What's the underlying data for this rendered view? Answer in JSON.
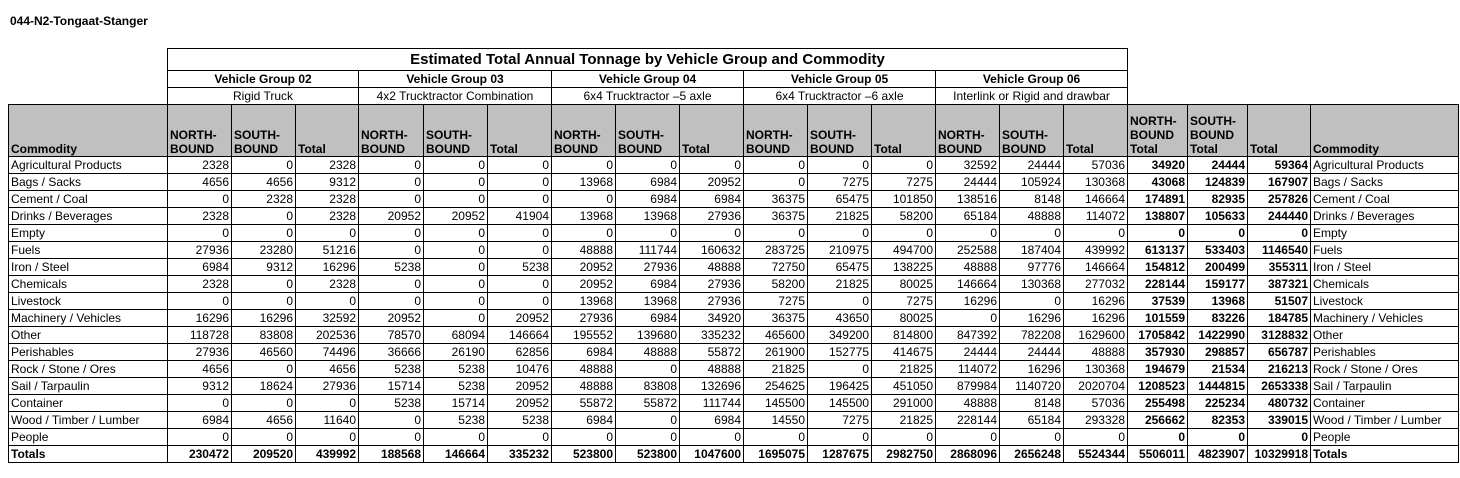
{
  "header": {
    "title": "044-N2-Tongaat-Stanger"
  },
  "table": {
    "title": "Estimated Total Annual Tonnage by Vehicle Group and Commodity",
    "groups": [
      {
        "name": "Vehicle Group 02",
        "subtitle": "Rigid Truck"
      },
      {
        "name": "Vehicle Group 03",
        "subtitle": "4x2 Trucktractor Combination"
      },
      {
        "name": "Vehicle Group 04",
        "subtitle": "6x4 Trucktractor –5 axle"
      },
      {
        "name": "Vehicle Group 05",
        "subtitle": "6x4 Trucktractor –6 axle"
      },
      {
        "name": "Vehicle Group 06",
        "subtitle": "Interlink or Rigid and drawbar"
      }
    ],
    "columns": [
      "Commodity",
      "NORTH-BOUND",
      "SOUTH-BOUND",
      "Total",
      "NORTH-BOUND",
      "SOUTH-BOUND",
      "Total",
      "NORTH-BOUND",
      "SOUTH-BOUND",
      "Total",
      "NORTH-BOUND",
      "SOUTH-BOUND",
      "Total",
      "NORTH-BOUND",
      "SOUTH-BOUND",
      "Total",
      "NORTH-BOUND Total",
      "SOUTH-BOUND Total",
      "Total",
      "Commodity"
    ],
    "rows": [
      {
        "commodity": "Agricultural Products",
        "values": [
          2328,
          0,
          2328,
          0,
          0,
          0,
          0,
          0,
          0,
          0,
          0,
          0,
          32592,
          24444,
          57036,
          34920,
          24444,
          59364
        ]
      },
      {
        "commodity": "Bags / Sacks",
        "values": [
          4656,
          4656,
          9312,
          0,
          0,
          0,
          13968,
          6984,
          20952,
          0,
          7275,
          7275,
          24444,
          105924,
          130368,
          43068,
          124839,
          167907
        ]
      },
      {
        "commodity": "Cement / Coal",
        "values": [
          0,
          2328,
          2328,
          0,
          0,
          0,
          0,
          6984,
          6984,
          36375,
          65475,
          101850,
          138516,
          8148,
          146664,
          174891,
          82935,
          257826
        ]
      },
      {
        "commodity": "Drinks / Beverages",
        "values": [
          2328,
          0,
          2328,
          20952,
          20952,
          41904,
          13968,
          13968,
          27936,
          36375,
          21825,
          58200,
          65184,
          48888,
          114072,
          138807,
          105633,
          244440
        ]
      },
      {
        "commodity": "Empty",
        "values": [
          0,
          0,
          0,
          0,
          0,
          0,
          0,
          0,
          0,
          0,
          0,
          0,
          0,
          0,
          0,
          0,
          0,
          0
        ]
      },
      {
        "commodity": "Fuels",
        "values": [
          27936,
          23280,
          51216,
          0,
          0,
          0,
          48888,
          111744,
          160632,
          283725,
          210975,
          494700,
          252588,
          187404,
          439992,
          613137,
          533403,
          1146540
        ]
      },
      {
        "commodity": "Iron / Steel",
        "values": [
          6984,
          9312,
          16296,
          5238,
          0,
          5238,
          20952,
          27936,
          48888,
          72750,
          65475,
          138225,
          48888,
          97776,
          146664,
          154812,
          200499,
          355311
        ]
      },
      {
        "commodity": "Chemicals",
        "values": [
          2328,
          0,
          2328,
          0,
          0,
          0,
          20952,
          6984,
          27936,
          58200,
          21825,
          80025,
          146664,
          130368,
          277032,
          228144,
          159177,
          387321
        ]
      },
      {
        "commodity": "Livestock",
        "values": [
          0,
          0,
          0,
          0,
          0,
          0,
          13968,
          13968,
          27936,
          7275,
          0,
          7275,
          16296,
          0,
          16296,
          37539,
          13968,
          51507
        ]
      },
      {
        "commodity": "Machinery / Vehicles",
        "values": [
          16296,
          16296,
          32592,
          20952,
          0,
          20952,
          27936,
          6984,
          34920,
          36375,
          43650,
          80025,
          0,
          16296,
          16296,
          101559,
          83226,
          184785
        ]
      },
      {
        "commodity": "Other",
        "values": [
          118728,
          83808,
          202536,
          78570,
          68094,
          146664,
          195552,
          139680,
          335232,
          465600,
          349200,
          814800,
          847392,
          782208,
          1629600,
          1705842,
          1422990,
          3128832
        ]
      },
      {
        "commodity": "Perishables",
        "values": [
          27936,
          46560,
          74496,
          36666,
          26190,
          62856,
          6984,
          48888,
          55872,
          261900,
          152775,
          414675,
          24444,
          24444,
          48888,
          357930,
          298857,
          656787
        ]
      },
      {
        "commodity": "Rock / Stone / Ores",
        "values": [
          4656,
          0,
          4656,
          5238,
          5238,
          10476,
          48888,
          0,
          48888,
          21825,
          0,
          21825,
          114072,
          16296,
          130368,
          194679,
          21534,
          216213
        ]
      },
      {
        "commodity": "Sail / Tarpaulin",
        "values": [
          9312,
          18624,
          27936,
          15714,
          5238,
          20952,
          48888,
          83808,
          132696,
          254625,
          196425,
          451050,
          879984,
          1140720,
          2020704,
          1208523,
          1444815,
          2653338
        ]
      },
      {
        "commodity": "Container",
        "values": [
          0,
          0,
          0,
          5238,
          15714,
          20952,
          55872,
          55872,
          111744,
          145500,
          145500,
          291000,
          48888,
          8148,
          57036,
          255498,
          225234,
          480732
        ]
      },
      {
        "commodity": "Wood / Timber / Lumber",
        "values": [
          6984,
          4656,
          11640,
          0,
          5238,
          5238,
          6984,
          0,
          6984,
          14550,
          7275,
          21825,
          228144,
          65184,
          293328,
          256662,
          82353,
          339015
        ]
      },
      {
        "commodity": "People",
        "values": [
          0,
          0,
          0,
          0,
          0,
          0,
          0,
          0,
          0,
          0,
          0,
          0,
          0,
          0,
          0,
          0,
          0,
          0
        ]
      },
      {
        "commodity": "Totals",
        "values": [
          230472,
          209520,
          439992,
          188568,
          146664,
          335232,
          523800,
          523800,
          1047600,
          1695075,
          1287675,
          2982750,
          2868096,
          2656248,
          5524344,
          5506011,
          4823907,
          10329918
        ]
      }
    ]
  }
}
